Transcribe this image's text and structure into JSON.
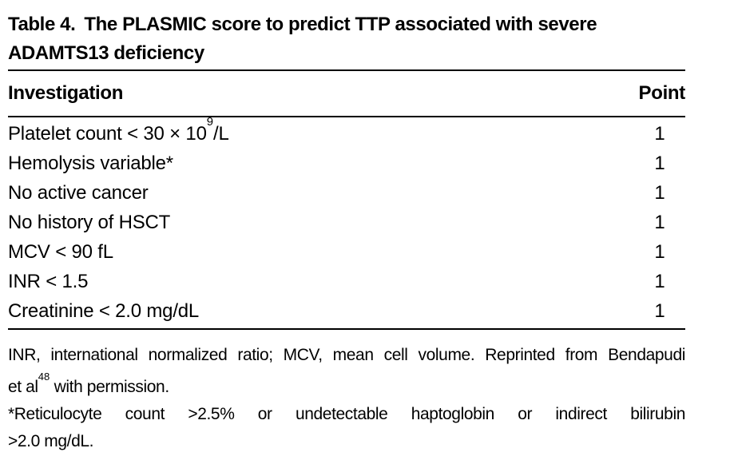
{
  "colors": {
    "background": "#ffffff",
    "text": "#000000",
    "rule": "#000000"
  },
  "caption": {
    "label": "Table 4.",
    "title_line1": "The PLASMIC score to predict TTP associated with severe",
    "title_line2": "ADAMTS13 deficiency"
  },
  "table": {
    "header": {
      "investigation": "Investigation",
      "point": "Point"
    },
    "rows": [
      {
        "text": "Platelet count < 30 × 10",
        "sup": "9",
        "text_after": "/L",
        "point": "1"
      },
      {
        "text": "Hemolysis variable*",
        "sup": "",
        "text_after": "",
        "point": "1"
      },
      {
        "text": "No active cancer",
        "sup": "",
        "text_after": "",
        "point": "1"
      },
      {
        "text": "No history of HSCT",
        "sup": "",
        "text_after": "",
        "point": "1"
      },
      {
        "text": "MCV < 90 fL",
        "sup": "",
        "text_after": "",
        "point": "1"
      },
      {
        "text": "INR < 1.5",
        "sup": "",
        "text_after": "",
        "point": "1"
      },
      {
        "text": "Creatinine < 2.0 mg/dL",
        "sup": "",
        "text_after": "",
        "point": "1"
      }
    ]
  },
  "footnotes": {
    "abbrev_line1": "INR, international normalized ratio; MCV, mean cell volume. Reprinted from Bendapudi",
    "abbrev_line2_before": "et al",
    "abbrev_line2_sup": "48",
    "abbrev_line2_after": " with permission.",
    "asterisk_line1": "*Reticulocyte count >2.5% or undetectable haptoglobin or indirect bilirubin",
    "asterisk_line2": ">2.0 mg/dL."
  }
}
